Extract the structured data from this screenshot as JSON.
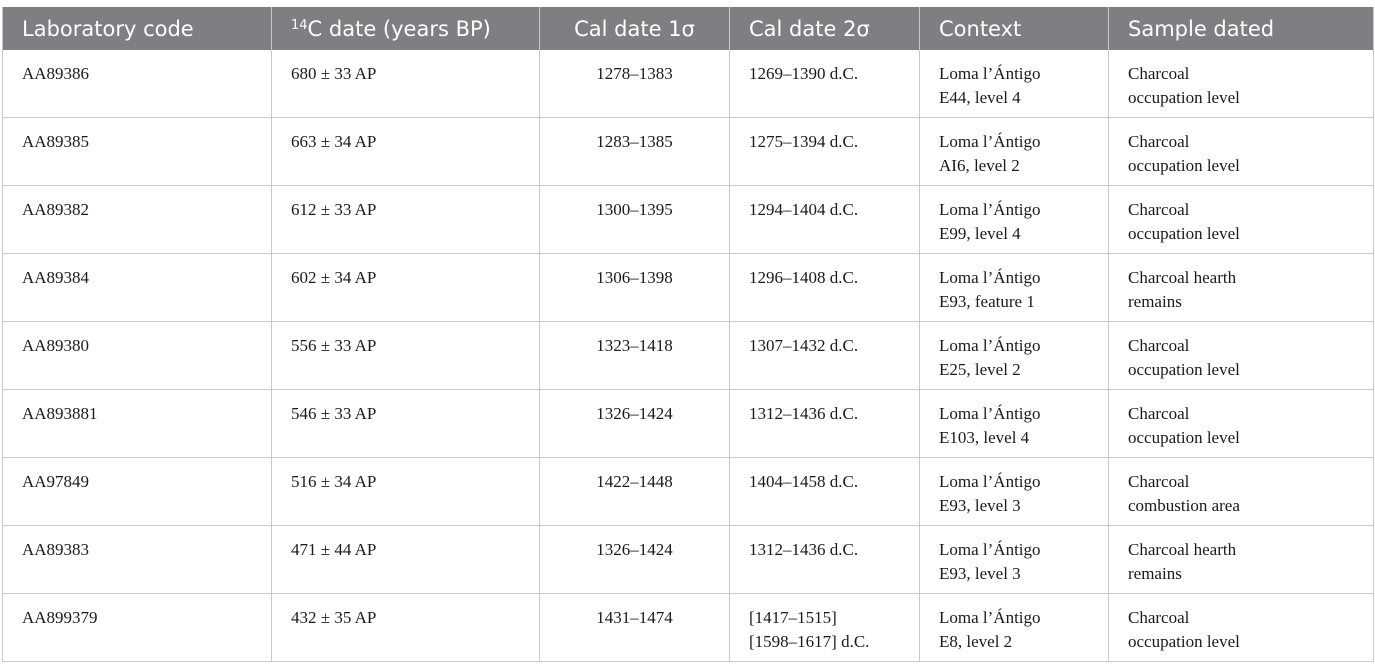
{
  "table": {
    "headers": {
      "lab_code": "Laboratory code",
      "c14_sup": "14",
      "c14_rest": "C date (years BP)",
      "cal1": "Cal date 1σ",
      "cal2": "Cal date 2σ",
      "context": "Context",
      "sample": "Sample dated"
    },
    "rows": [
      {
        "lab": "AA89386",
        "c14": "680 ± 33 AP",
        "cal1": "1278–1383",
        "cal2": [
          "1269–1390 d.C."
        ],
        "context": [
          "Loma l’Ántigo",
          "E44, level 4"
        ],
        "sample": [
          "Charcoal",
          "occupation level"
        ]
      },
      {
        "lab": "AA89385",
        "c14": "663 ± 34 AP",
        "cal1": "1283–1385",
        "cal2": [
          "1275–1394 d.C."
        ],
        "context": [
          "Loma l’Ántigo",
          "AI6, level 2"
        ],
        "sample": [
          "Charcoal",
          "occupation level"
        ]
      },
      {
        "lab": "AA89382",
        "c14": "612 ± 33 AP",
        "cal1": "1300–1395",
        "cal2": [
          "1294–1404 d.C."
        ],
        "context": [
          "Loma l’Ántigo",
          "E99, level 4"
        ],
        "sample": [
          "Charcoal",
          "occupation level"
        ]
      },
      {
        "lab": "AA89384",
        "c14": "602 ± 34 AP",
        "cal1": "1306–1398",
        "cal2": [
          "1296–1408 d.C."
        ],
        "context": [
          "Loma l’Ántigo",
          "E93, feature 1"
        ],
        "sample": [
          "Charcoal hearth",
          "remains"
        ]
      },
      {
        "lab": "AA89380",
        "c14": "556 ± 33 AP",
        "cal1": "1323–1418",
        "cal2": [
          "1307–1432 d.C."
        ],
        "context": [
          "Loma l’Ántigo",
          "E25, level 2"
        ],
        "sample": [
          "Charcoal",
          "occupation level"
        ]
      },
      {
        "lab": "AA893881",
        "c14": "546 ± 33 AP",
        "cal1": "1326–1424",
        "cal2": [
          "1312–1436 d.C."
        ],
        "context": [
          "Loma l’Ántigo",
          "E103, level 4"
        ],
        "sample": [
          "Charcoal",
          "occupation level"
        ]
      },
      {
        "lab": "AA97849",
        "c14": "516 ± 34 AP",
        "cal1": "1422–1448",
        "cal2": [
          "1404–1458 d.C."
        ],
        "context": [
          "Loma l’Ántigo",
          "E93, level 3"
        ],
        "sample": [
          "Charcoal",
          "combustion area"
        ]
      },
      {
        "lab": "AA89383",
        "c14": "471 ± 44 AP",
        "cal1": "1326–1424",
        "cal2": [
          "1312–1436 d.C."
        ],
        "context": [
          "Loma l’Ántigo",
          "E93, level 3"
        ],
        "sample": [
          "Charcoal hearth",
          "remains"
        ]
      },
      {
        "lab": "AA899379",
        "c14": "432 ± 35 AP",
        "cal1": "1431–1474",
        "cal2": [
          "[1417–1515]",
          "[1598–1617] d.C."
        ],
        "context": [
          "Loma l’Ántigo",
          "E8, level 2"
        ],
        "sample": [
          "Charcoal",
          "occupation level"
        ]
      }
    ]
  }
}
